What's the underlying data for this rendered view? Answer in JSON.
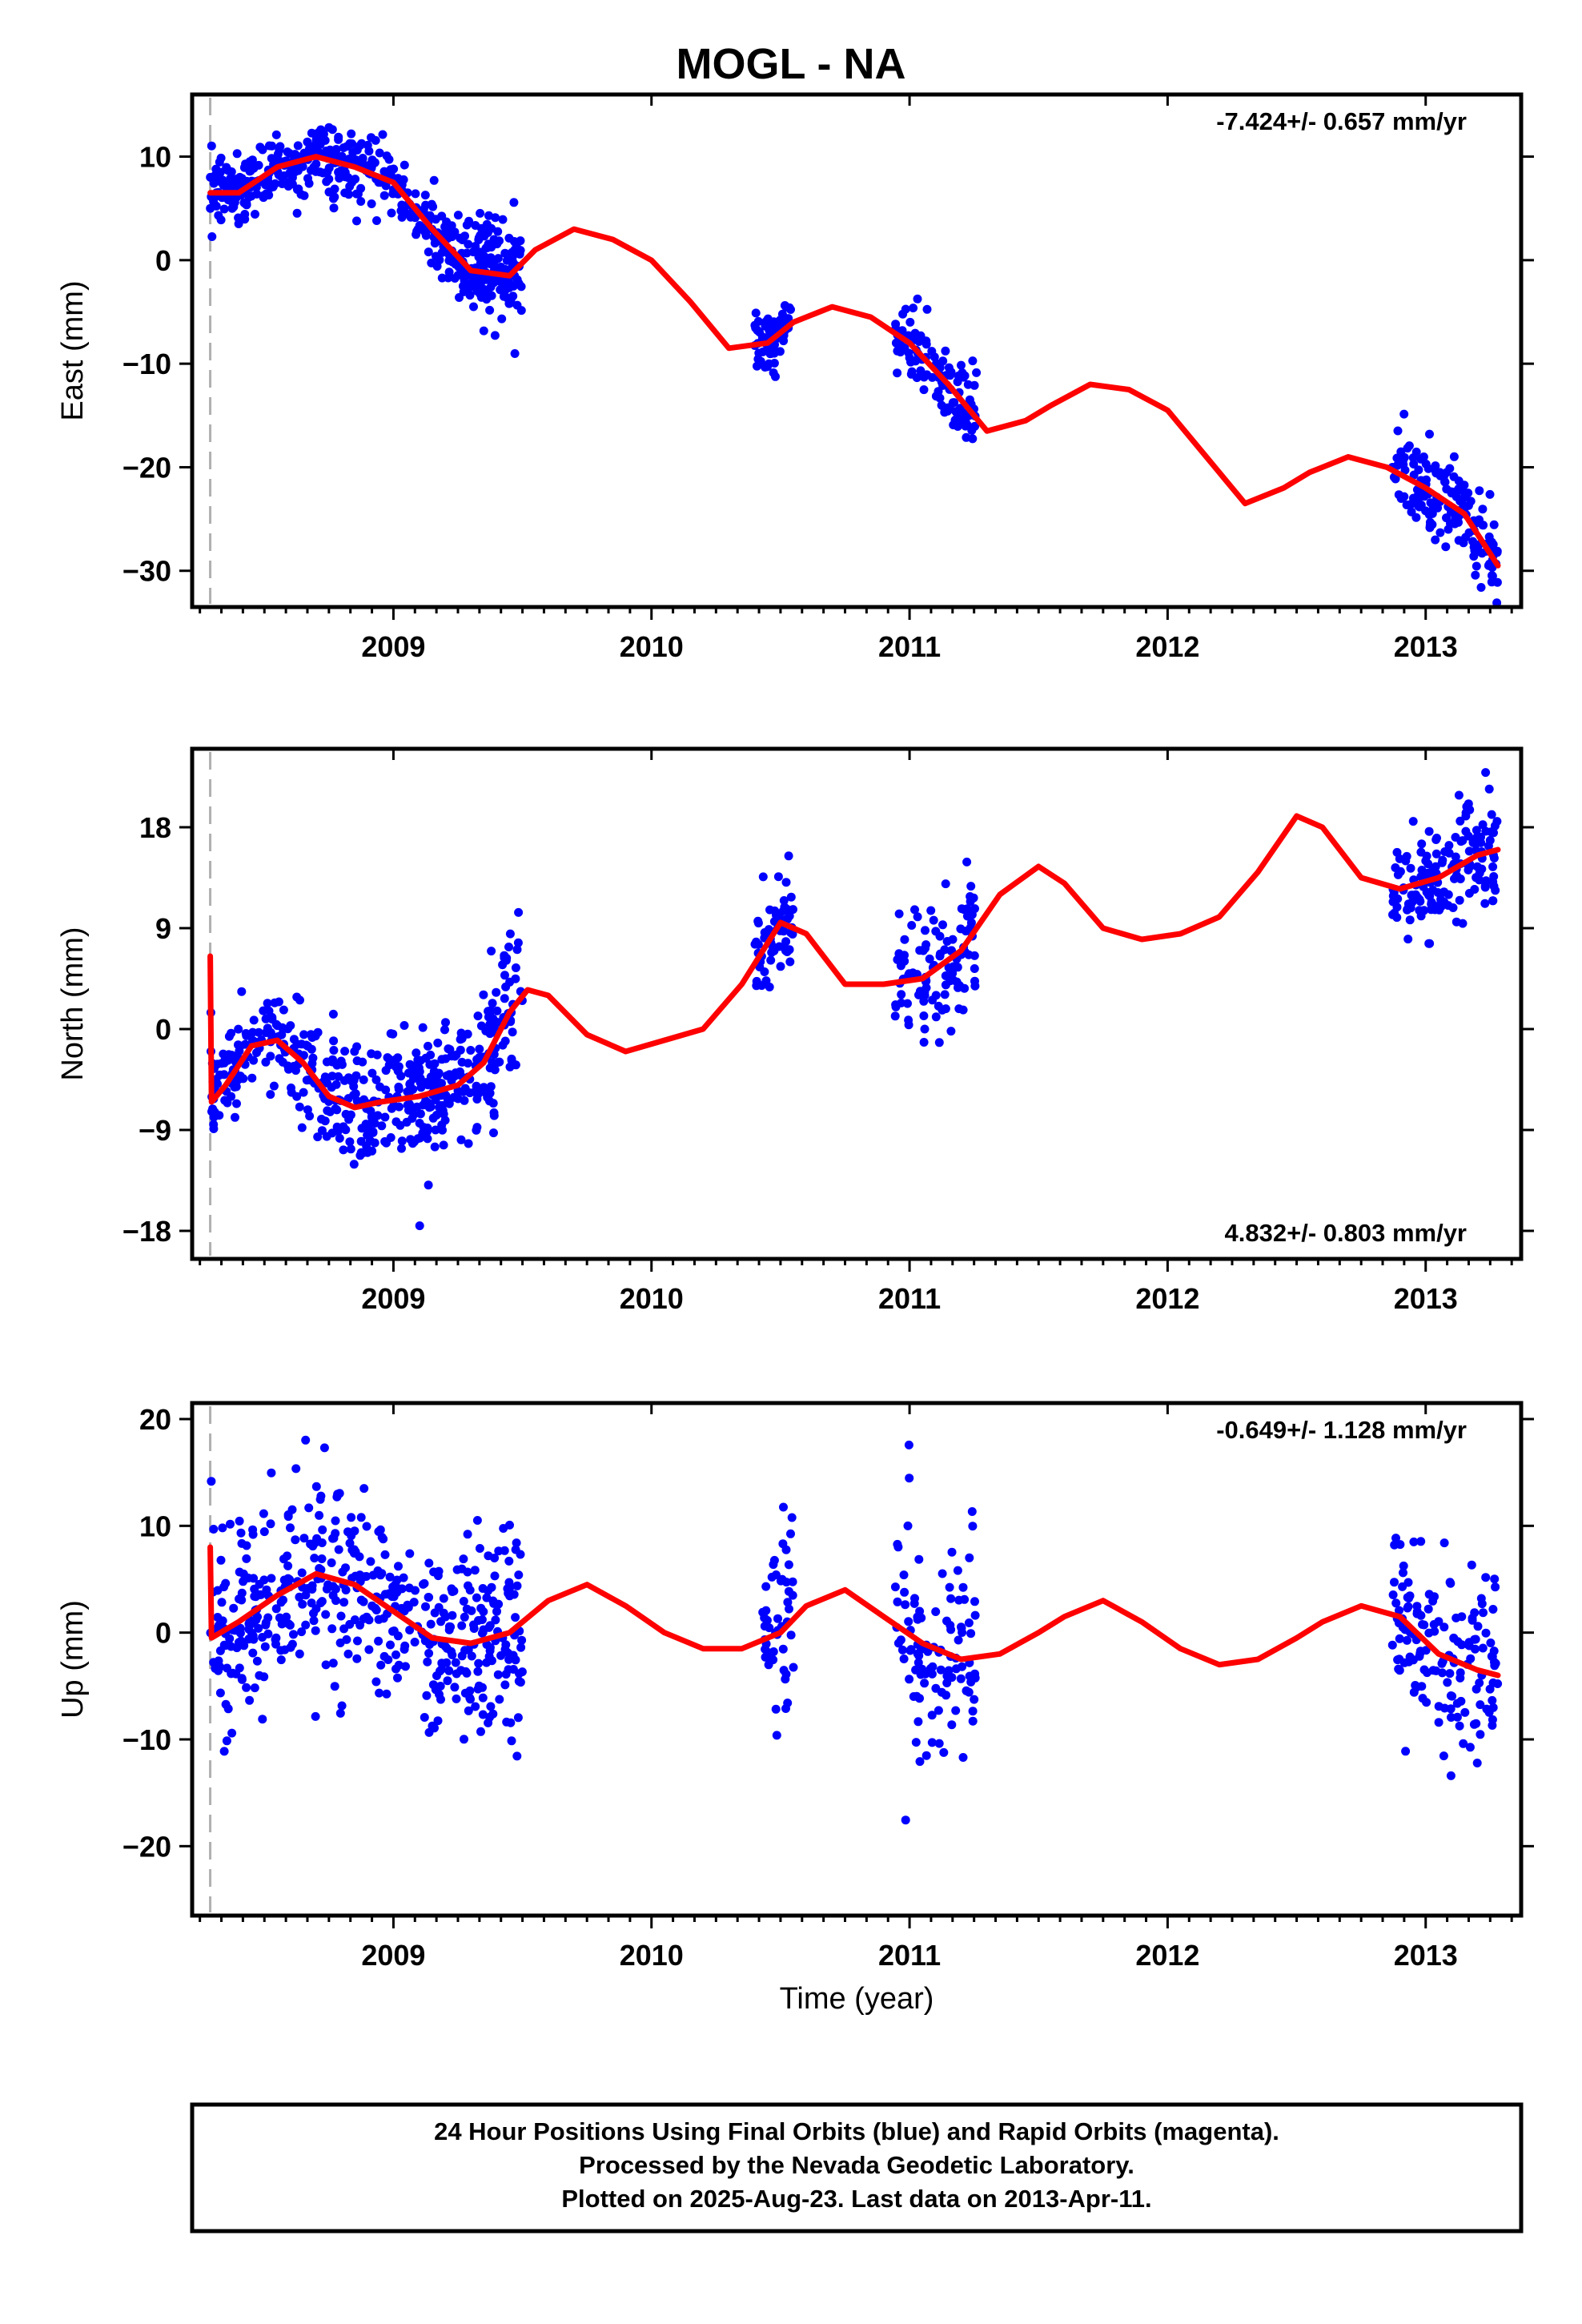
{
  "title": "MOGL - NA",
  "colors": {
    "points": "#0000ff",
    "fit": "#ff0000",
    "dashed_line": "#b0b0b0",
    "frame": "#000000"
  },
  "xlabel": "Time (year)",
  "footer": {
    "line1": "24 Hour Positions Using Final Orbits (blue) and Rapid Orbits (magenta).",
    "line2": "Processed by the Nevada Geodetic Laboratory.",
    "line3": "Plotted on 2025-Aug-23. Last data on 2013-Apr-11."
  },
  "chart_data": [
    {
      "type": "scatter",
      "ylabel": "East (mm)",
      "rate_text": "-7.424+/- 0.657 mm/yr",
      "rate_position": "top-right",
      "xlim": [
        2008.22,
        2013.37
      ],
      "ylim": [
        -33.5,
        16
      ],
      "xticks": [
        2009,
        2010,
        2011,
        2012,
        2013
      ],
      "yticks": [
        -30,
        -20,
        -10,
        0,
        10
      ],
      "dashed_x": 2008.29,
      "fit_line": {
        "x": [
          2008.29,
          2008.4,
          2008.55,
          2008.7,
          2008.85,
          2009.0,
          2009.15,
          2009.3,
          2009.45,
          2009.55,
          2009.7,
          2009.85,
          2010.0,
          2010.15,
          2010.3,
          2010.45,
          2010.55,
          2010.7,
          2010.85,
          2011.0,
          2011.15,
          2011.3,
          2011.45,
          2011.55,
          2011.7,
          2011.85,
          2012.0,
          2012.15,
          2012.3,
          2012.45,
          2012.55,
          2012.7,
          2012.85,
          2013.0,
          2013.15,
          2013.28
        ],
        "y": [
          6.5,
          6.5,
          9.0,
          10.0,
          9.0,
          7.5,
          3.0,
          -1.0,
          -1.5,
          1.0,
          3.0,
          2.0,
          0.0,
          -4.0,
          -8.5,
          -8.0,
          -6.0,
          -4.5,
          -5.5,
          -8.0,
          -12.0,
          -16.5,
          -15.5,
          -14.0,
          -12.0,
          -12.5,
          -14.5,
          -19.0,
          -23.5,
          -22.0,
          -20.5,
          -19.0,
          -20.0,
          -22.0,
          -24.5,
          -29.5
        ]
      },
      "clusters": [
        {
          "x0": 2008.29,
          "x1": 2008.44,
          "n": 80,
          "sd": 1.6
        },
        {
          "x0": 2008.44,
          "x1": 2009.25,
          "n": 300,
          "sd": 1.8
        },
        {
          "x0": 2009.25,
          "x1": 2009.5,
          "n": 150,
          "sd": 2.4
        },
        {
          "x0": 2010.4,
          "x1": 2010.54,
          "n": 70,
          "sd": 1.5
        },
        {
          "x0": 2010.94,
          "x1": 2011.26,
          "n": 110,
          "sd": 2.0
        },
        {
          "x0": 2012.87,
          "x1": 2013.28,
          "n": 160,
          "sd": 2.2
        }
      ]
    },
    {
      "type": "scatter",
      "ylabel": "North (mm)",
      "rate_text": "4.832+/- 0.803 mm/yr",
      "rate_position": "bottom-right",
      "xlim": [
        2008.22,
        2013.37
      ],
      "ylim": [
        -20.5,
        25
      ],
      "xticks": [
        2009,
        2010,
        2011,
        2012,
        2013
      ],
      "yticks": [
        -18,
        -9,
        0,
        9,
        18
      ],
      "dashed_x": 2008.29,
      "fit_line": {
        "x": [
          2008.29,
          2008.295,
          2008.35,
          2008.45,
          2008.55,
          2008.65,
          2008.75,
          2008.85,
          2008.95,
          2009.1,
          2009.25,
          2009.35,
          2009.45,
          2009.52,
          2009.6,
          2009.75,
          2009.9,
          2010.05,
          2010.2,
          2010.35,
          2010.5,
          2010.6,
          2010.75,
          2010.9,
          2011.05,
          2011.2,
          2011.35,
          2011.5,
          2011.6,
          2011.75,
          2011.9,
          2012.05,
          2012.2,
          2012.35,
          2012.5,
          2012.6,
          2012.75,
          2012.9,
          2013.05,
          2013.2,
          2013.28
        ],
        "y": [
          6.5,
          -6.5,
          -5.0,
          -1.5,
          -1.0,
          -3.0,
          -6.0,
          -7.0,
          -6.5,
          -6.0,
          -5.0,
          -3.0,
          1.5,
          3.5,
          3.0,
          -0.5,
          -2.0,
          -1.0,
          0.0,
          4.0,
          9.5,
          8.5,
          4.0,
          4.0,
          4.5,
          7.0,
          12.0,
          14.5,
          13.0,
          9.0,
          8.0,
          8.5,
          10.0,
          14.0,
          19.0,
          18.0,
          13.5,
          12.5,
          13.5,
          15.5,
          16.0
        ]
      },
      "clusters": [
        {
          "x0": 2008.29,
          "x1": 2008.42,
          "n": 60,
          "sd": 2.0
        },
        {
          "x0": 2008.42,
          "x1": 2008.75,
          "n": 100,
          "sd": 2.2
        },
        {
          "x0": 2008.75,
          "x1": 2009.3,
          "n": 250,
          "sd": 2.6
        },
        {
          "x0": 2009.3,
          "x1": 2009.5,
          "n": 90,
          "sd": 3.0
        },
        {
          "x0": 2010.4,
          "x1": 2010.55,
          "n": 60,
          "sd": 2.0
        },
        {
          "x0": 2010.94,
          "x1": 2011.26,
          "n": 110,
          "sd": 3.0
        },
        {
          "x0": 2012.87,
          "x1": 2013.28,
          "n": 160,
          "sd": 2.6
        }
      ]
    },
    {
      "type": "scatter",
      "ylabel": "Up (mm)",
      "rate_text": "-0.649+/- 1.128 mm/yr",
      "rate_position": "top-right",
      "xlim": [
        2008.22,
        2013.37
      ],
      "ylim": [
        -26.5,
        21.5
      ],
      "xticks": [
        2009,
        2010,
        2011,
        2012,
        2013
      ],
      "yticks": [
        -20,
        -10,
        0,
        10,
        20
      ],
      "dashed_x": 2008.29,
      "fit_line": {
        "x": [
          2008.29,
          2008.295,
          2008.4,
          2008.55,
          2008.7,
          2008.85,
          2009.0,
          2009.15,
          2009.3,
          2009.45,
          2009.6,
          2009.75,
          2009.9,
          2010.05,
          2010.2,
          2010.35,
          2010.5,
          2010.6,
          2010.75,
          2010.9,
          2011.05,
          2011.2,
          2011.35,
          2011.5,
          2011.6,
          2011.75,
          2011.9,
          2012.05,
          2012.2,
          2012.35,
          2012.5,
          2012.6,
          2012.75,
          2012.9,
          2013.05,
          2013.2,
          2013.28
        ],
        "y": [
          8.0,
          -0.5,
          1.0,
          3.5,
          5.5,
          4.5,
          2.0,
          -0.5,
          -1.0,
          0.0,
          3.0,
          4.5,
          2.5,
          0.0,
          -1.5,
          -1.5,
          0.0,
          2.5,
          4.0,
          1.5,
          -1.0,
          -2.5,
          -2.0,
          0.0,
          1.5,
          3.0,
          1.0,
          -1.5,
          -3.0,
          -2.5,
          -0.5,
          1.0,
          2.5,
          1.5,
          -2.0,
          -3.5,
          -4.0
        ]
      },
      "clusters": [
        {
          "x0": 2008.29,
          "x1": 2008.45,
          "n": 70,
          "sd": 5.0
        },
        {
          "x0": 2008.45,
          "x1": 2009.25,
          "n": 300,
          "sd": 4.5
        },
        {
          "x0": 2009.25,
          "x1": 2009.5,
          "n": 120,
          "sd": 5.0
        },
        {
          "x0": 2010.43,
          "x1": 2010.55,
          "n": 50,
          "sd": 5.0
        },
        {
          "x0": 2010.94,
          "x1": 2011.26,
          "n": 110,
          "sd": 5.0
        },
        {
          "x0": 2012.87,
          "x1": 2013.28,
          "n": 150,
          "sd": 4.2
        }
      ]
    }
  ]
}
